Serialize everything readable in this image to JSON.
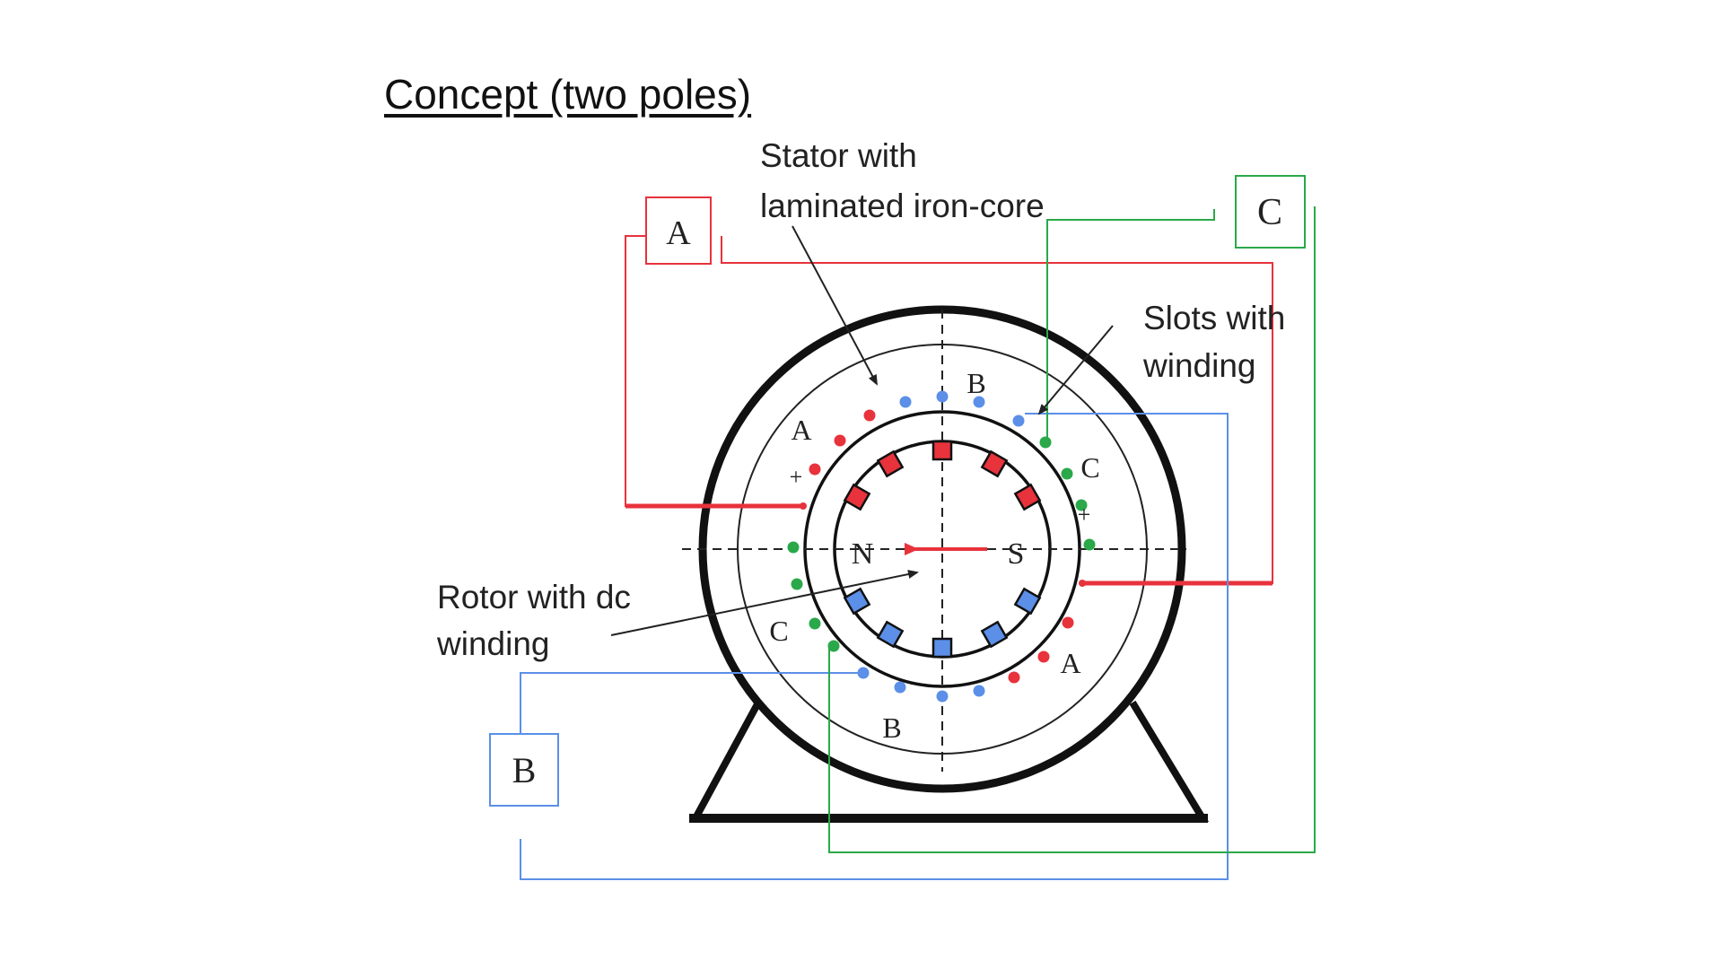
{
  "title": "Concept (two poles)",
  "labels": {
    "stator_line1": "Stator with",
    "stator_line2": "laminated iron-core",
    "slots_line1": "Slots with",
    "slots_line2": "winding",
    "rotor_line1": "Rotor with dc",
    "rotor_line2": "winding"
  },
  "phase_boxes": {
    "a": "A",
    "b": "B",
    "c": "C"
  },
  "phase_labels": {
    "a": "A",
    "b": "B",
    "c": "C"
  },
  "poles": {
    "north": "N",
    "south": "S"
  },
  "signs": {
    "plus": "+"
  },
  "colors": {
    "phase_a": "#e8323c",
    "phase_b": "#5b8fe8",
    "phase_c": "#2aa84a",
    "outline": "#111111"
  }
}
